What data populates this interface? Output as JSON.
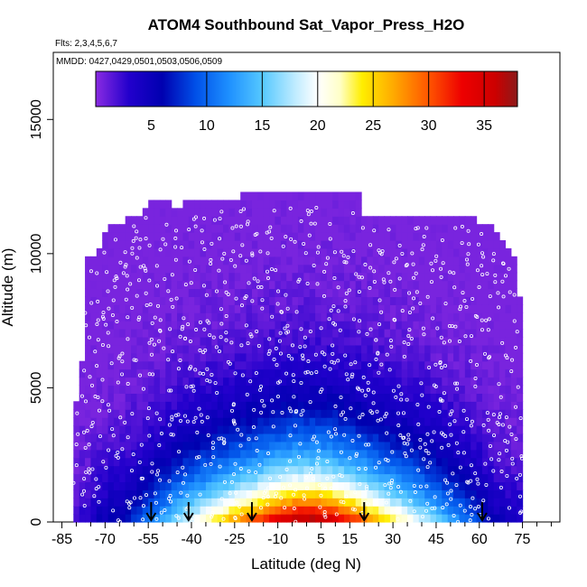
{
  "chart_data": {
    "type": "heatmap",
    "title": "ATOM4 Southbound Sat_Vapor_Press_H2O",
    "flights_label": "Flts: 2,3,4,5,6,7",
    "dates_label": "MMDD: 0427,0429,0501,0503,0506,0509",
    "xlabel": "Latitude (deg N)",
    "ylabel": "Altitude (m)",
    "xlim": [
      -88,
      88
    ],
    "ylim": [
      0,
      17500
    ],
    "x_ticks": [
      -85,
      -70,
      -55,
      -40,
      -25,
      -10,
      5,
      15,
      30,
      45,
      60,
      75
    ],
    "y_ticks": [
      0,
      5000,
      10000,
      15000
    ],
    "colorbar": {
      "range": [
        0,
        38
      ],
      "tick_values": [
        5,
        10,
        15,
        20,
        25,
        30,
        35
      ],
      "divider_values": [
        10,
        15,
        20,
        25,
        30,
        35
      ],
      "stops": [
        {
          "value": 0,
          "color": "#8a2be2"
        },
        {
          "value": 3,
          "color": "#2200cc"
        },
        {
          "value": 6,
          "color": "#0000b0"
        },
        {
          "value": 9,
          "color": "#0050e8"
        },
        {
          "value": 12,
          "color": "#1e90ff"
        },
        {
          "value": 15,
          "color": "#55c8ff"
        },
        {
          "value": 18,
          "color": "#c0ecff"
        },
        {
          "value": 20,
          "color": "#ffffff"
        },
        {
          "value": 22,
          "color": "#ffffc8"
        },
        {
          "value": 24,
          "color": "#ffee00"
        },
        {
          "value": 27,
          "color": "#ffa500"
        },
        {
          "value": 30,
          "color": "#ff5500"
        },
        {
          "value": 33,
          "color": "#ee0000"
        },
        {
          "value": 36,
          "color": "#cc0000"
        },
        {
          "value": 38,
          "color": "#8b1a1a"
        }
      ]
    },
    "field": {
      "lat_min": -80,
      "lat_max": 74,
      "columns": [
        {
          "lat": -80,
          "top": 4500,
          "ground": 2
        },
        {
          "lat": -78,
          "top": 6000,
          "ground": 3
        },
        {
          "lat": -76,
          "top": 9700,
          "ground": 3
        },
        {
          "lat": -74,
          "top": 9800,
          "ground": 4
        },
        {
          "lat": -72,
          "top": 10100,
          "ground": 5
        },
        {
          "lat": -70,
          "top": 10600,
          "ground": 5
        },
        {
          "lat": -68,
          "top": 10900,
          "ground": 6
        },
        {
          "lat": -66,
          "top": 10900,
          "ground": 6
        },
        {
          "lat": -64,
          "top": 11000,
          "ground": 6
        },
        {
          "lat": -62,
          "top": 11400,
          "ground": 7
        },
        {
          "lat": -60,
          "top": 11400,
          "ground": 8
        },
        {
          "lat": -58,
          "top": 11400,
          "ground": 9
        },
        {
          "lat": -56,
          "top": 11700,
          "ground": 10
        },
        {
          "lat": -54,
          "top": 11800,
          "ground": 11
        },
        {
          "lat": -52,
          "top": 11800,
          "ground": 12
        },
        {
          "lat": -50,
          "top": 11800,
          "ground": 13
        },
        {
          "lat": -48,
          "top": 11800,
          "ground": 14
        },
        {
          "lat": -46,
          "top": 11700,
          "ground": 16
        },
        {
          "lat": -44,
          "top": 11700,
          "ground": 17
        },
        {
          "lat": -42,
          "top": 12000,
          "ground": 18
        },
        {
          "lat": -40,
          "top": 11800,
          "ground": 19
        },
        {
          "lat": -38,
          "top": 11800,
          "ground": 20
        },
        {
          "lat": -36,
          "top": 12000,
          "ground": 21
        },
        {
          "lat": -34,
          "top": 11800,
          "ground": 22
        },
        {
          "lat": -32,
          "top": 11800,
          "ground": 23
        },
        {
          "lat": -30,
          "top": 12000,
          "ground": 24
        },
        {
          "lat": -28,
          "top": 11800,
          "ground": 25
        },
        {
          "lat": -26,
          "top": 11800,
          "ground": 26
        },
        {
          "lat": -24,
          "top": 11900,
          "ground": 27
        },
        {
          "lat": -22,
          "top": 12100,
          "ground": 28
        },
        {
          "lat": -20,
          "top": 12100,
          "ground": 29
        },
        {
          "lat": -18,
          "top": 12100,
          "ground": 30
        },
        {
          "lat": -16,
          "top": 12100,
          "ground": 31
        },
        {
          "lat": -14,
          "top": 12100,
          "ground": 32
        },
        {
          "lat": -12,
          "top": 12100,
          "ground": 33
        },
        {
          "lat": -10,
          "top": 12100,
          "ground": 34
        },
        {
          "lat": -8,
          "top": 12100,
          "ground": 35
        },
        {
          "lat": -6,
          "top": 12100,
          "ground": 35
        },
        {
          "lat": -4,
          "top": 12100,
          "ground": 36
        },
        {
          "lat": -2,
          "top": 12100,
          "ground": 36
        },
        {
          "lat": 0,
          "top": 12100,
          "ground": 36
        },
        {
          "lat": 2,
          "top": 12100,
          "ground": 36
        },
        {
          "lat": 4,
          "top": 12100,
          "ground": 36
        },
        {
          "lat": 6,
          "top": 12100,
          "ground": 35
        },
        {
          "lat": 8,
          "top": 12100,
          "ground": 35
        },
        {
          "lat": 10,
          "top": 12100,
          "ground": 34
        },
        {
          "lat": 12,
          "top": 12100,
          "ground": 33
        },
        {
          "lat": 14,
          "top": 12100,
          "ground": 32
        },
        {
          "lat": 16,
          "top": 12100,
          "ground": 31
        },
        {
          "lat": 18,
          "top": 12100,
          "ground": 30
        },
        {
          "lat": 20,
          "top": 11400,
          "ground": 29
        },
        {
          "lat": 22,
          "top": 11400,
          "ground": 27
        },
        {
          "lat": 24,
          "top": 11400,
          "ground": 26
        },
        {
          "lat": 26,
          "top": 11400,
          "ground": 25
        },
        {
          "lat": 28,
          "top": 11400,
          "ground": 24
        },
        {
          "lat": 30,
          "top": 11400,
          "ground": 23
        },
        {
          "lat": 32,
          "top": 11400,
          "ground": 22
        },
        {
          "lat": 34,
          "top": 11400,
          "ground": 21
        },
        {
          "lat": 36,
          "top": 11400,
          "ground": 20
        },
        {
          "lat": 38,
          "top": 11400,
          "ground": 19
        },
        {
          "lat": 40,
          "top": 11400,
          "ground": 18
        },
        {
          "lat": 42,
          "top": 11400,
          "ground": 17
        },
        {
          "lat": 44,
          "top": 11400,
          "ground": 16
        },
        {
          "lat": 46,
          "top": 11400,
          "ground": 15
        },
        {
          "lat": 48,
          "top": 11400,
          "ground": 14
        },
        {
          "lat": 50,
          "top": 11400,
          "ground": 13
        },
        {
          "lat": 52,
          "top": 11400,
          "ground": 12
        },
        {
          "lat": 54,
          "top": 11400,
          "ground": 11
        },
        {
          "lat": 56,
          "top": 11400,
          "ground": 10
        },
        {
          "lat": 58,
          "top": 11400,
          "ground": 9
        },
        {
          "lat": 60,
          "top": 11100,
          "ground": 8
        },
        {
          "lat": 62,
          "top": 11100,
          "ground": 7
        },
        {
          "lat": 64,
          "top": 10900,
          "ground": 6
        },
        {
          "lat": 66,
          "top": 10600,
          "ground": 5
        },
        {
          "lat": 68,
          "top": 10500,
          "ground": 5
        },
        {
          "lat": 70,
          "top": 10000,
          "ground": 4
        },
        {
          "lat": 72,
          "top": 9900,
          "ground": 4
        },
        {
          "lat": 74,
          "top": 8200,
          "ground": 4
        }
      ]
    },
    "arrows_lat": [
      -54,
      -41,
      -19,
      20,
      61
    ],
    "arrow_color": "#000000",
    "point_color": "#ffffff"
  }
}
